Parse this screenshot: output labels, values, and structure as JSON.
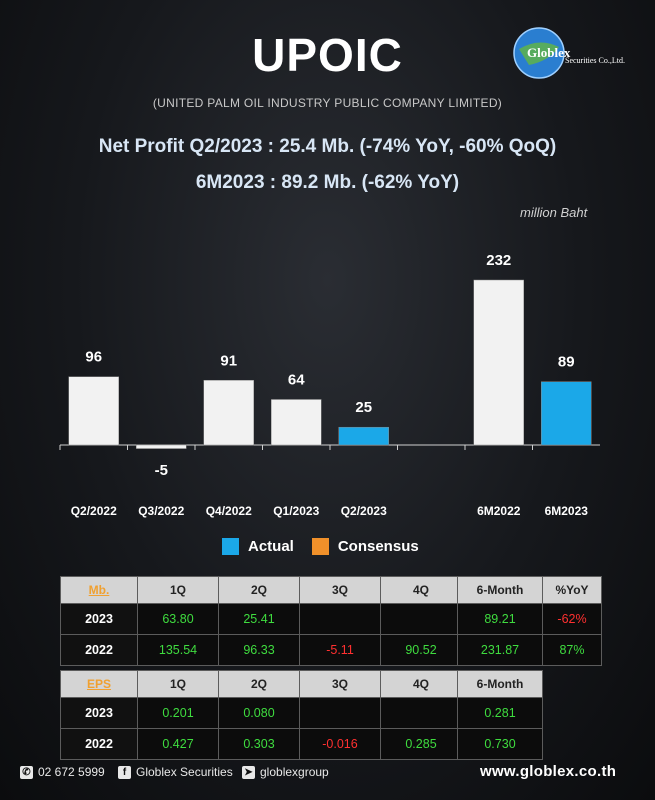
{
  "header": {
    "title": "UPOIC",
    "subtitle": "(UNITED PALM OIL INDUSTRY PUBLIC COMPANY LIMITED)",
    "logo_text": "Globlex",
    "logo_subtext": "Securities Co.,Ltd.",
    "headline1": "Net Profit  Q2/2023 : 25.4 Mb. (-74% YoY, -60% QoQ)",
    "headline2": "6M2023 : 89.2 Mb. (-62% YoY)",
    "unit": "million Baht"
  },
  "chart_data": {
    "type": "bar",
    "categories": [
      "Q2/2022",
      "Q3/2022",
      "Q4/2022",
      "Q1/2023",
      "Q2/2023",
      "",
      "6M2022",
      "6M2023"
    ],
    "values": [
      96,
      -5,
      91,
      64,
      25,
      null,
      232,
      89
    ],
    "data_labels": [
      "96",
      "-5",
      "91",
      "64",
      "25",
      "",
      "232",
      "89"
    ],
    "highlight": [
      "Q2/2023",
      "6M2023"
    ],
    "ylabel": "million Baht",
    "legend": [
      "Actual",
      "Consensus"
    ],
    "legend_placement": "bottom",
    "colors": {
      "default": "#f2f2f2",
      "actual": "#1ba8e8",
      "consensus": "#f0902a"
    }
  },
  "legend": {
    "actual": "Actual",
    "consensus": "Consensus"
  },
  "profit_table": {
    "key": "Mb.",
    "headers": [
      "1Q",
      "2Q",
      "3Q",
      "4Q"
    ],
    "rows": [
      {
        "year": "2023",
        "q1": "63.80",
        "q2": "25.41",
        "q3": "",
        "q4": ""
      },
      {
        "year": "2022",
        "q1": "135.54",
        "q2": "96.33",
        "q3": "-5.11",
        "q4": "90.52"
      }
    ]
  },
  "profit_side": {
    "headers": [
      "6-Month",
      "%YoY"
    ],
    "rows": [
      {
        "m6": "89.21",
        "yoy": "-62%"
      },
      {
        "m6": "231.87",
        "yoy": "87%"
      }
    ]
  },
  "eps_table": {
    "key": "EPS",
    "headers": [
      "1Q",
      "2Q",
      "3Q",
      "4Q"
    ],
    "rows": [
      {
        "year": "2023",
        "q1": "0.201",
        "q2": "0.080",
        "q3": "",
        "q4": ""
      },
      {
        "year": "2022",
        "q1": "0.427",
        "q2": "0.303",
        "q3": "-0.016",
        "q4": "0.285"
      }
    ]
  },
  "eps_side": {
    "header": "6-Month",
    "rows": [
      {
        "m6": "0.281"
      },
      {
        "m6": "0.730"
      }
    ]
  },
  "footer": {
    "phone": "02 672 5999",
    "facebook": "Globlex Securities",
    "telegram": "globlexgroup",
    "website": "www.globlex.co.th"
  }
}
